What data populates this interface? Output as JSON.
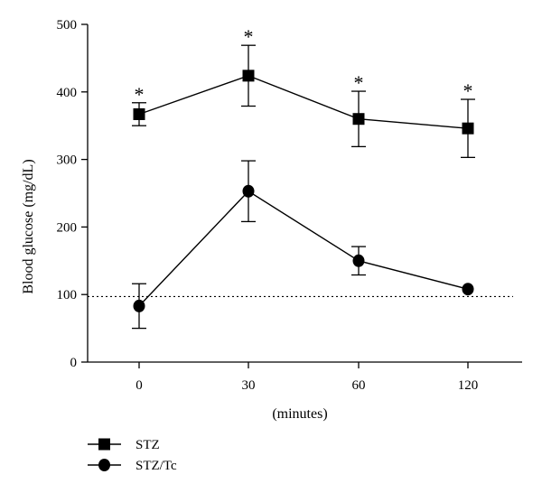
{
  "chart_data": {
    "type": "line",
    "xlabel": "(minutes)",
    "ylabel": "Blood glucose (mg/dL)",
    "categories": [
      "0",
      "30",
      "60",
      "120"
    ],
    "ylim": [
      0,
      500
    ],
    "yticks": [
      0,
      100,
      200,
      300,
      400,
      500
    ],
    "reference_line": {
      "y": 97,
      "style": "dotted"
    },
    "series": [
      {
        "name": "STZ",
        "marker": "square",
        "values": [
          367,
          424,
          360,
          346
        ],
        "error": [
          17,
          45,
          41,
          43
        ],
        "significance": [
          "*",
          "*",
          "*",
          "*"
        ]
      },
      {
        "name": "STZ/Tc",
        "marker": "circle",
        "values": [
          83,
          253,
          150,
          108
        ],
        "error": [
          33,
          45,
          21,
          0
        ],
        "significance": [
          "",
          "",
          "",
          ""
        ]
      }
    ],
    "legend_position": "bottom-left",
    "colors": {
      "line": "#000000",
      "marker": "#000000",
      "background": "#ffffff"
    }
  }
}
